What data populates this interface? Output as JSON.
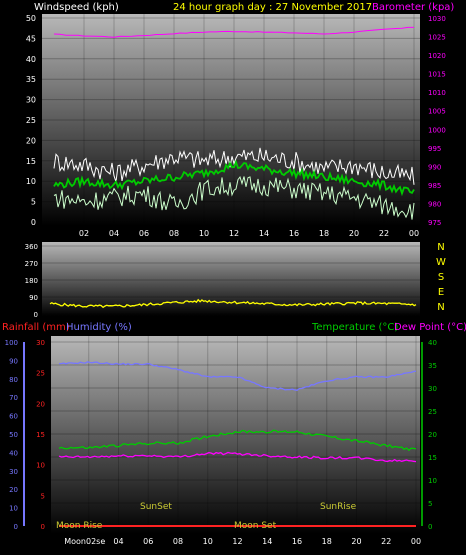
{
  "colors": {
    "white": "#ffffff",
    "yellow": "#ffff00",
    "magenta": "#ff00ff",
    "green": "#00cc00",
    "lightgreen": "#ccffcc",
    "blue": "#7777ff",
    "red": "#ff2222",
    "olive": "#cccc33",
    "cyan": "#ffffff"
  },
  "header": {
    "left": "Windspeed (kph)",
    "center": "24 hour graph day : 27 November 2017",
    "right": "Barometer (kpa)"
  },
  "compass": [
    "N",
    "W",
    "S",
    "E",
    "N"
  ],
  "bottom_header": {
    "rain": "Rainfall (mm)",
    "hum": "Humidity (%)",
    "temp": "Temperature (°C)",
    "dew": "Dew Point (°C)"
  },
  "xticks": [
    "02",
    "04",
    "06",
    "08",
    "10",
    "12",
    "14",
    "16",
    "18",
    "20",
    "22",
    "00"
  ],
  "moon_xticks": [
    "Moon02se",
    "04",
    "06",
    "08",
    "10",
    "12",
    "14",
    "16",
    "18",
    "20",
    "22",
    "00"
  ],
  "events": {
    "moonrise": "Moon Rise",
    "sunset1": "SunSet",
    "moonset": "Moon Set",
    "sunrise": "SunRise"
  },
  "chart_data": [
    {
      "type": "line",
      "title": "24 hour graph day : 27 November 2017",
      "ylabel": "Windspeed (kph)",
      "y2label": "Barometer (kpa)",
      "xlabel": "",
      "ylim": [
        0,
        50
      ],
      "y2lim": [
        975,
        1030
      ],
      "yticks": [
        0,
        5,
        10,
        15,
        20,
        25,
        30,
        35,
        40,
        45,
        50
      ],
      "y2ticks": [
        975,
        980,
        985,
        990,
        995,
        1000,
        1005,
        1010,
        1015,
        1020,
        1025,
        1030
      ],
      "x": [
        0,
        2,
        4,
        6,
        8,
        10,
        12,
        14,
        16,
        18,
        20,
        22,
        24
      ],
      "series": [
        {
          "name": "Barometer (kpa)",
          "axis": "right",
          "values": [
            1025.6,
            1025.2,
            1024.9,
            1025.3,
            1025.8,
            1026.2,
            1026.4,
            1026.2,
            1026.0,
            1025.7,
            1026.2,
            1026.9,
            1027.5
          ]
        },
        {
          "name": "Gust",
          "axis": "left",
          "values": [
            15,
            14,
            12,
            14,
            16,
            15,
            16,
            16,
            15,
            13,
            14,
            12,
            11
          ]
        },
        {
          "name": "Windspeed (kph)",
          "axis": "left",
          "values": [
            9,
            10,
            9,
            10,
            11,
            12,
            14,
            13,
            12,
            11,
            10,
            9,
            7
          ]
        },
        {
          "name": "Low",
          "axis": "left",
          "values": [
            6,
            5,
            6,
            7,
            4,
            8,
            9,
            9,
            8,
            7,
            6,
            4,
            3
          ]
        }
      ]
    },
    {
      "type": "line",
      "ylabel": "Wind direction",
      "ylim": [
        0,
        360
      ],
      "yticks": [
        0,
        90,
        180,
        270,
        360
      ],
      "x": [
        0,
        2,
        4,
        6,
        8,
        10,
        12,
        14,
        16,
        18,
        20,
        22,
        24
      ],
      "series": [
        {
          "name": "Direction",
          "values": [
            55,
            42,
            40,
            48,
            60,
            70,
            62,
            55,
            48,
            52,
            58,
            55,
            50
          ]
        }
      ]
    },
    {
      "type": "line",
      "ylabel": "Rainfall (mm) / Humidity (%)",
      "y2label": "Temperature (°C) / Dew Point (°C)",
      "ylim": [
        0,
        100
      ],
      "y2lim": [
        0,
        40
      ],
      "yticks": [
        0,
        10,
        20,
        30,
        40,
        50,
        60,
        70,
        80,
        90,
        100
      ],
      "raintics": [
        0,
        5,
        10,
        15,
        20,
        25,
        30
      ],
      "y2ticks": [
        0,
        5,
        10,
        15,
        20,
        25,
        30,
        35,
        40
      ],
      "x": [
        0,
        2,
        4,
        6,
        8,
        10,
        12,
        14,
        16,
        18,
        20,
        22,
        24
      ],
      "series": [
        {
          "name": "Humidity (%)",
          "axis": "left",
          "values": [
            88,
            89,
            88,
            88,
            85,
            81,
            81,
            75,
            74,
            79,
            81,
            81,
            84
          ]
        },
        {
          "name": "Temperature (°C)",
          "axis": "right",
          "values": [
            17,
            17,
            17.5,
            18,
            18,
            19.5,
            20.5,
            20.5,
            20.5,
            19.5,
            18.5,
            17.5,
            16.5
          ]
        },
        {
          "name": "Dew Point (°C)",
          "axis": "right",
          "values": [
            15,
            15,
            15.2,
            15.3,
            15,
            15.8,
            15.7,
            15.3,
            15,
            14.8,
            14.8,
            14.2,
            14.2
          ]
        },
        {
          "name": "Rainfall (mm)",
          "axis": "left",
          "values": [
            0,
            0,
            0,
            0,
            0,
            0,
            0,
            0,
            0,
            0,
            0,
            0,
            0
          ]
        }
      ]
    }
  ]
}
